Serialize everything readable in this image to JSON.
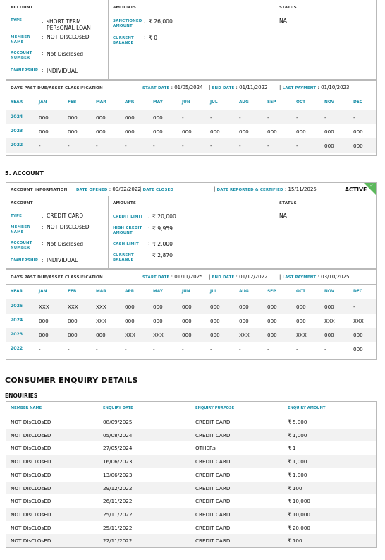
{
  "account4": {
    "col_account": "ACCOUNT",
    "col_amounts": "AMOUNTS",
    "col_status": "STATUS",
    "status_value": "NA",
    "type_label": "TYPE",
    "type_value": "sHORT TERM PERsONAL LOAN",
    "member_label": "MEMBER NAME",
    "member_value": "NOT DIsCLOsED",
    "acctnum_label": "ACCOUNT NUMBER",
    "acctnum_value": "Not Disclosed",
    "ownership_label": "OWNERSHIP",
    "ownership_value": "INDIVIDUAL",
    "sanctioned_label": "SANCTIONED AMOUNT",
    "sanctioned_value": "₹ 26,000",
    "balance_label": "CURRENT BALANCE",
    "balance_value": "₹ 0",
    "dpd_title": "DAYS PAST DUE/ASSET CLASSIFICATION",
    "start_label": "START DATE",
    "start_value": "01/05/2024",
    "end_label": "END DATE",
    "end_value": "01/11/2022",
    "lastpay_label": "LAST PAYMENT",
    "lastpay_value": "01/10/2023",
    "months": [
      "YEAR",
      "JAN",
      "FEB",
      "MAR",
      "APR",
      "MAY",
      "JUN",
      "JUL",
      "AUG",
      "SEP",
      "OCT",
      "NOV",
      "DEC"
    ],
    "rows": [
      [
        "2024",
        "000",
        "000",
        "000",
        "000",
        "000",
        "-",
        "-",
        "-",
        "-",
        "-",
        "-",
        "-"
      ],
      [
        "2023",
        "000",
        "000",
        "000",
        "000",
        "000",
        "000",
        "000",
        "000",
        "000",
        "000",
        "000",
        "000"
      ],
      [
        "2022",
        "-",
        "-",
        "-",
        "-",
        "-",
        "-",
        "-",
        "-",
        "-",
        "-",
        "000",
        "000"
      ]
    ]
  },
  "section5_title": "5. ACCOUNT",
  "account5": {
    "info_label": "ACCOUNT INFORMATION",
    "opened_label": "DATE OPENED",
    "opened_value": "09/02/2022",
    "closed_label": "DATE CLOSED",
    "closed_value": "",
    "reported_label": "DATE REPORTED & CERTIFIED",
    "reported_value": "15/11/2025",
    "active": "ACTIVE",
    "check": "✓",
    "col_account": "ACCOUNT",
    "col_amounts": "AMOUNTS",
    "col_status": "STATUS",
    "status_value": "NA",
    "type_label": "TYPE",
    "type_value": "CREDIT CARD",
    "member_label": "MEMBER NAME",
    "member_value": "NOT DIsCLOsED",
    "acctnum_label": "ACCOUNT NUMBER",
    "acctnum_value": "Not Disclosed",
    "ownership_label": "OWNERSHIP",
    "ownership_value": "INDIVIDUAL",
    "credit_limit_label": "CREDIT LIMIT",
    "credit_limit_value": "₹ 20,000",
    "high_credit_label": "HIGH CREDIT AMOUNT",
    "high_credit_value": "₹ 9,959",
    "cash_limit_label": "CASH LIMIT",
    "cash_limit_value": "₹ 2,000",
    "balance_label": "CURRENT BALANCE",
    "balance_value": "₹ 2,870",
    "dpd_title": "DAYS PAST DUE/ASSET CLASSIFICATION",
    "start_label": "START DATE",
    "start_value": "01/11/2025",
    "end_label": "END DATE",
    "end_value": "01/12/2022",
    "lastpay_label": "LAST PAYMENT",
    "lastpay_value": "03/10/2025",
    "months": [
      "YEAR",
      "JAN",
      "FEB",
      "MAR",
      "APR",
      "MAY",
      "JUN",
      "JUL",
      "AUG",
      "SEP",
      "OCT",
      "NOV",
      "DEC"
    ],
    "rows": [
      [
        "2025",
        "XXX",
        "XXX",
        "XXX",
        "000",
        "000",
        "000",
        "000",
        "000",
        "000",
        "000",
        "000",
        "-"
      ],
      [
        "2024",
        "000",
        "000",
        "XXX",
        "000",
        "000",
        "000",
        "000",
        "000",
        "000",
        "000",
        "XXX",
        "XXX"
      ],
      [
        "2023",
        "000",
        "000",
        "000",
        "XXX",
        "XXX",
        "000",
        "000",
        "XXX",
        "000",
        "XXX",
        "000",
        "000"
      ],
      [
        "2022",
        "-",
        "-",
        "-",
        "-",
        "-",
        "-",
        "-",
        "-",
        "-",
        "-",
        "-",
        "000"
      ]
    ]
  },
  "enquiry_title": "CONSUMER ENQUIRY DETAILS",
  "enquiries_subtitle": "ENQUIRIES",
  "enquiry_headers": [
    "MEMBER NAME",
    "ENQUIRY DATE",
    "ENQUIRY PURPOSE",
    "ENQUIRY AMOUNT"
  ],
  "enquiries": [
    [
      "NOT DIsCLOsED",
      "08/09/2025",
      "CREDIT CARD",
      "₹ 5,000"
    ],
    [
      "NOT DIsCLOsED",
      "05/08/2024",
      "CREDIT CARD",
      "₹ 1,000"
    ],
    [
      "NOT DIsCLOsED",
      "27/05/2024",
      "OTHERs",
      "₹ 1"
    ],
    [
      "NOT DIsCLOsED",
      "16/06/2023",
      "CREDIT CARD",
      "₹ 1,000"
    ],
    [
      "NOT DIsCLOsED",
      "13/06/2023",
      "CREDIT CARD",
      "₹ 1,000"
    ],
    [
      "NOT DIsCLOsED",
      "29/12/2022",
      "CREDIT CARD",
      "₹ 100"
    ],
    [
      "NOT DIsCLOsED",
      "26/11/2022",
      "CREDIT CARD",
      "₹ 10,000"
    ],
    [
      "NOT DIsCLOsED",
      "25/11/2022",
      "CREDIT CARD",
      "₹ 10,000"
    ],
    [
      "NOT DIsCLOsED",
      "25/11/2022",
      "CREDIT CARD",
      "₹ 20,000"
    ],
    [
      "NOT DIsCLOsED",
      "22/11/2022",
      "CREDIT CARD",
      "₹ 100"
    ]
  ],
  "colors": {
    "accent": "#1a8fa8",
    "active_green": "#5cb85c",
    "stripe": "#f2f2f2"
  }
}
